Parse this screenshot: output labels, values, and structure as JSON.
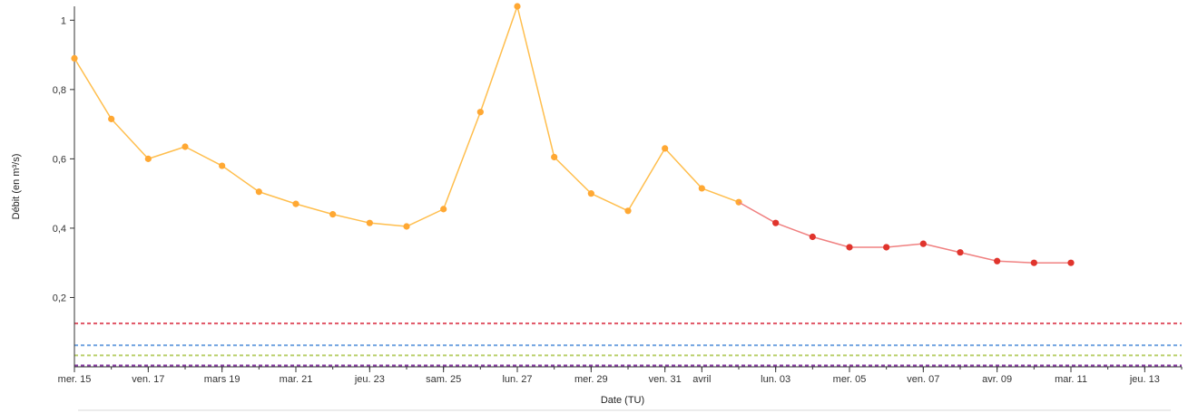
{
  "chart_data": {
    "type": "line",
    "xlabel": "Date (TU)",
    "ylabel": "Débit (en m³/s)",
    "ylim": [
      0,
      1.04
    ],
    "xlim": [
      "2018-03-15",
      "2018-04-14"
    ],
    "grid": false,
    "y_ticks": [
      {
        "value": 1,
        "label": "1"
      },
      {
        "value": 0.8,
        "label": "0,8"
      },
      {
        "value": 0.6,
        "label": "0,6"
      },
      {
        "value": 0.4,
        "label": "0,4"
      },
      {
        "value": 0.2,
        "label": "0,2"
      }
    ],
    "x_ticks": [
      {
        "date": "2018-03-15",
        "label": "mer. 15"
      },
      {
        "date": "2018-03-17",
        "label": "ven. 17"
      },
      {
        "date": "2018-03-19",
        "label": "mars 19"
      },
      {
        "date": "2018-03-21",
        "label": "mar. 21"
      },
      {
        "date": "2018-03-23",
        "label": "jeu. 23"
      },
      {
        "date": "2018-03-25",
        "label": "sam. 25"
      },
      {
        "date": "2018-03-27",
        "label": "lun. 27"
      },
      {
        "date": "2018-03-29",
        "label": "mer. 29"
      },
      {
        "date": "2018-03-31",
        "label": "ven. 31"
      },
      {
        "date": "2018-04-01",
        "label": "avril"
      },
      {
        "date": "2018-04-03",
        "label": "lun. 03"
      },
      {
        "date": "2018-04-05",
        "label": "mer. 05"
      },
      {
        "date": "2018-04-07",
        "label": "ven. 07"
      },
      {
        "date": "2018-04-09",
        "label": "avr. 09"
      },
      {
        "date": "2018-04-11",
        "label": "mar. 11"
      },
      {
        "date": "2018-04-13",
        "label": "jeu. 13"
      }
    ],
    "series": [
      {
        "color": "#ffbe4d",
        "marker_color": "#ffa833",
        "points": [
          {
            "x": "2018-03-15",
            "y": 0.89
          },
          {
            "x": "2018-03-16",
            "y": 0.715
          },
          {
            "x": "2018-03-17",
            "y": 0.6
          },
          {
            "x": "2018-03-18",
            "y": 0.635
          },
          {
            "x": "2018-03-19",
            "y": 0.58
          },
          {
            "x": "2018-03-20",
            "y": 0.505
          },
          {
            "x": "2018-03-21",
            "y": 0.47
          },
          {
            "x": "2018-03-22",
            "y": 0.44
          },
          {
            "x": "2018-03-23",
            "y": 0.415
          },
          {
            "x": "2018-03-24",
            "y": 0.405
          },
          {
            "x": "2018-03-25",
            "y": 0.455
          },
          {
            "x": "2018-03-26",
            "y": 0.735
          },
          {
            "x": "2018-03-27",
            "y": 1.04
          },
          {
            "x": "2018-03-28",
            "y": 0.605
          },
          {
            "x": "2018-03-29",
            "y": 0.5
          },
          {
            "x": "2018-03-30",
            "y": 0.45
          },
          {
            "x": "2018-03-31",
            "y": 0.63
          },
          {
            "x": "2018-04-01",
            "y": 0.515
          },
          {
            "x": "2018-04-02",
            "y": 0.475
          }
        ]
      },
      {
        "color": "#f08080",
        "marker_color": "#e0342c",
        "points": [
          {
            "x": "2018-04-02",
            "y": 0.475
          },
          {
            "x": "2018-04-03",
            "y": 0.415
          },
          {
            "x": "2018-04-04",
            "y": 0.375
          },
          {
            "x": "2018-04-05",
            "y": 0.345
          },
          {
            "x": "2018-04-06",
            "y": 0.345
          },
          {
            "x": "2018-04-07",
            "y": 0.355
          },
          {
            "x": "2018-04-08",
            "y": 0.33
          },
          {
            "x": "2018-04-09",
            "y": 0.305
          },
          {
            "x": "2018-04-10",
            "y": 0.3
          },
          {
            "x": "2018-04-11",
            "y": 0.3
          }
        ],
        "marked_from_index": 1
      }
    ],
    "threshold_lines": [
      {
        "y": 0.125,
        "color": "#e05565"
      },
      {
        "y": 0.062,
        "color": "#6fa1e0"
      },
      {
        "y": 0.033,
        "color": "#b9cf6a"
      },
      {
        "y": 0.004,
        "color": "#8a3fa5"
      }
    ]
  }
}
